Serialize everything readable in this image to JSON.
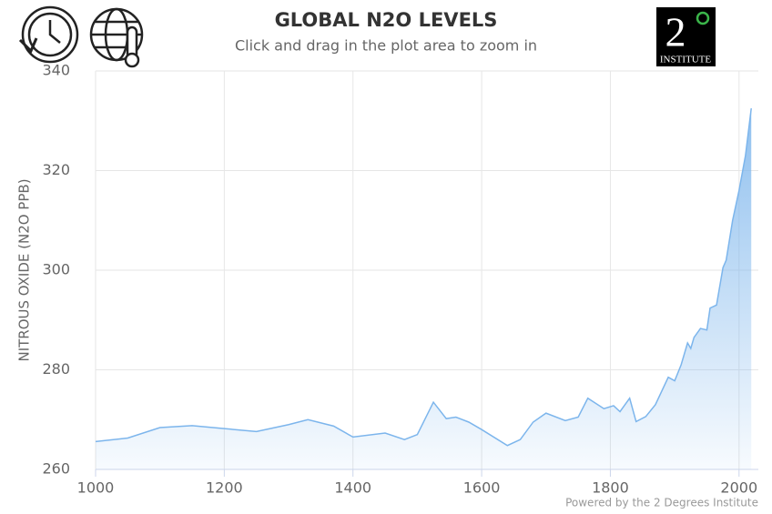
{
  "chart_data": {
    "type": "area",
    "title": "GLOBAL N2O LEVELS",
    "subtitle": "Click and drag in the plot area to zoom in",
    "y_label": "NITROUS OXIDE (N2O PPB)",
    "credit": "Powered by the 2 Degrees Institute",
    "logo": {
      "numeral": "2",
      "text": "INSTITUTE"
    },
    "color": "#7cb5ec",
    "grid": true,
    "xlim": [
      1000,
      2030
    ],
    "xticks": [
      1000,
      1200,
      1400,
      1600,
      1800,
      2000
    ],
    "ylim": [
      260,
      340
    ],
    "yticks": [
      260,
      280,
      300,
      320,
      340
    ],
    "x": [
      1000,
      1050,
      1100,
      1150,
      1200,
      1250,
      1300,
      1330,
      1370,
      1400,
      1450,
      1480,
      1500,
      1525,
      1545,
      1560,
      1580,
      1600,
      1640,
      1660,
      1680,
      1700,
      1730,
      1750,
      1765,
      1790,
      1805,
      1815,
      1830,
      1840,
      1855,
      1870,
      1890,
      1900,
      1910,
      1920,
      1925,
      1930,
      1940,
      1950,
      1955,
      1965,
      1975,
      1980,
      1990,
      2000,
      2010,
      2019
    ],
    "values": [
      265.6,
      266.3,
      268.4,
      268.8,
      268.2,
      267.6,
      269.0,
      270.0,
      268.7,
      266.5,
      267.3,
      266.0,
      267.0,
      273.5,
      270.2,
      270.5,
      269.5,
      268.0,
      264.8,
      266.0,
      269.5,
      271.3,
      269.8,
      270.5,
      274.3,
      272.2,
      272.8,
      271.6,
      274.3,
      269.6,
      270.6,
      273.0,
      278.5,
      277.8,
      281.0,
      285.4,
      284.3,
      286.5,
      288.3,
      288.0,
      292.4,
      293.0,
      300.5,
      302.0,
      310.0,
      316.0,
      323.0,
      332.5
    ]
  }
}
